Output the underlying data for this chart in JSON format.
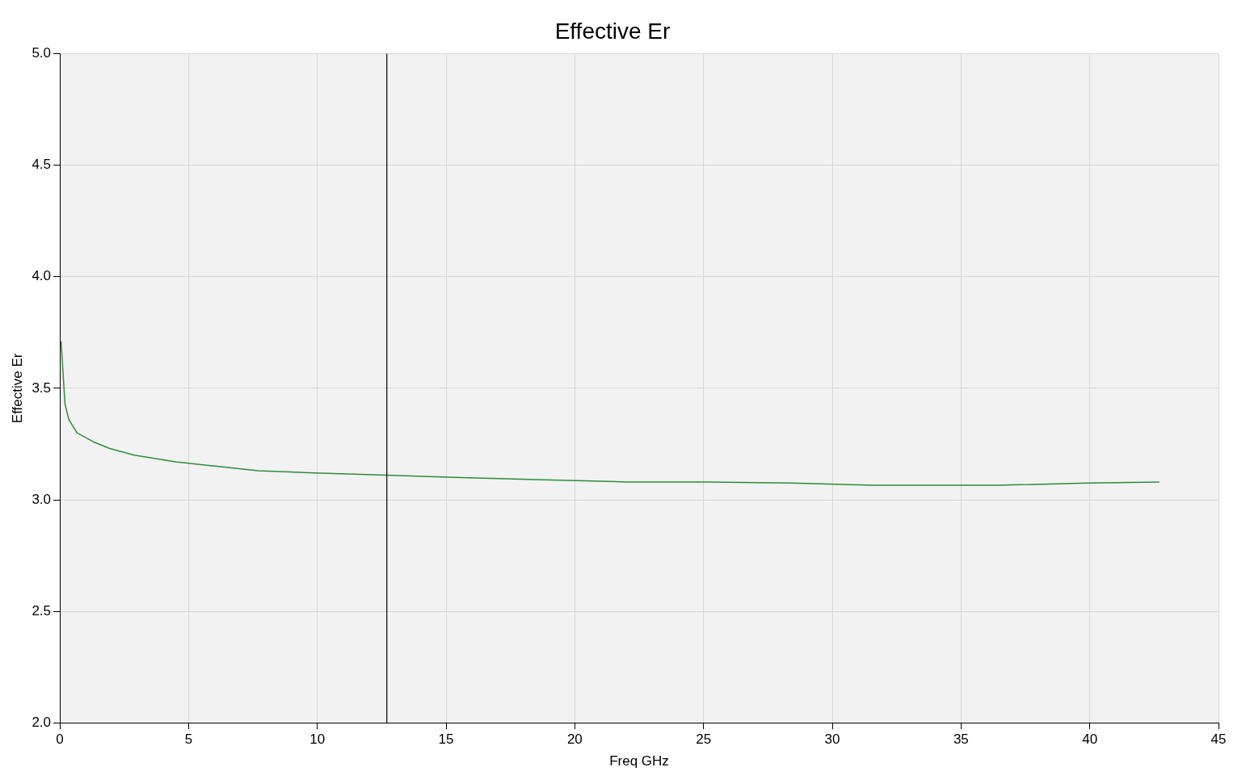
{
  "chart_data": {
    "type": "line",
    "title": "Effective Er",
    "xlabel": "Freq GHz",
    "ylabel": "Effective Er",
    "x": [
      0.05,
      0.2,
      0.35,
      0.67,
      1.3,
      1.94,
      2.9,
      4.5,
      6.1,
      7.7,
      9.9,
      12.7,
      15.6,
      18.8,
      22,
      25.2,
      28.4,
      31.6,
      36.4,
      39.9,
      42.7
    ],
    "series": [
      {
        "color": "#2e8b3a",
        "values": [
          3.71,
          3.43,
          3.36,
          3.3,
          3.26,
          3.23,
          3.2,
          3.17,
          3.15,
          3.13,
          3.12,
          3.11,
          3.1,
          3.09,
          3.08,
          3.08,
          3.075,
          3.065,
          3.065,
          3.075,
          3.08
        ]
      }
    ],
    "xlim": [
      0,
      45
    ],
    "xticks": [
      0,
      5,
      10,
      15,
      20,
      25,
      30,
      35,
      40,
      45
    ],
    "ylim": [
      2.0,
      5.0
    ],
    "yticks": [
      {
        "value": 2.0,
        "label": "2.0"
      },
      {
        "value": 2.5,
        "label": "2.5"
      },
      {
        "value": 3.0,
        "label": "3.0"
      },
      {
        "value": 3.5,
        "label": "3.5"
      },
      {
        "value": 4.0,
        "label": "4.0"
      },
      {
        "value": 4.5,
        "label": "4.5"
      },
      {
        "value": 5.0,
        "label": "5.0"
      }
    ],
    "ref_lines": [
      {
        "axis": "x",
        "value": 12.7,
        "color": "#000000"
      }
    ],
    "grid": true,
    "legend": false,
    "marker": "none",
    "line_style": "solid"
  }
}
